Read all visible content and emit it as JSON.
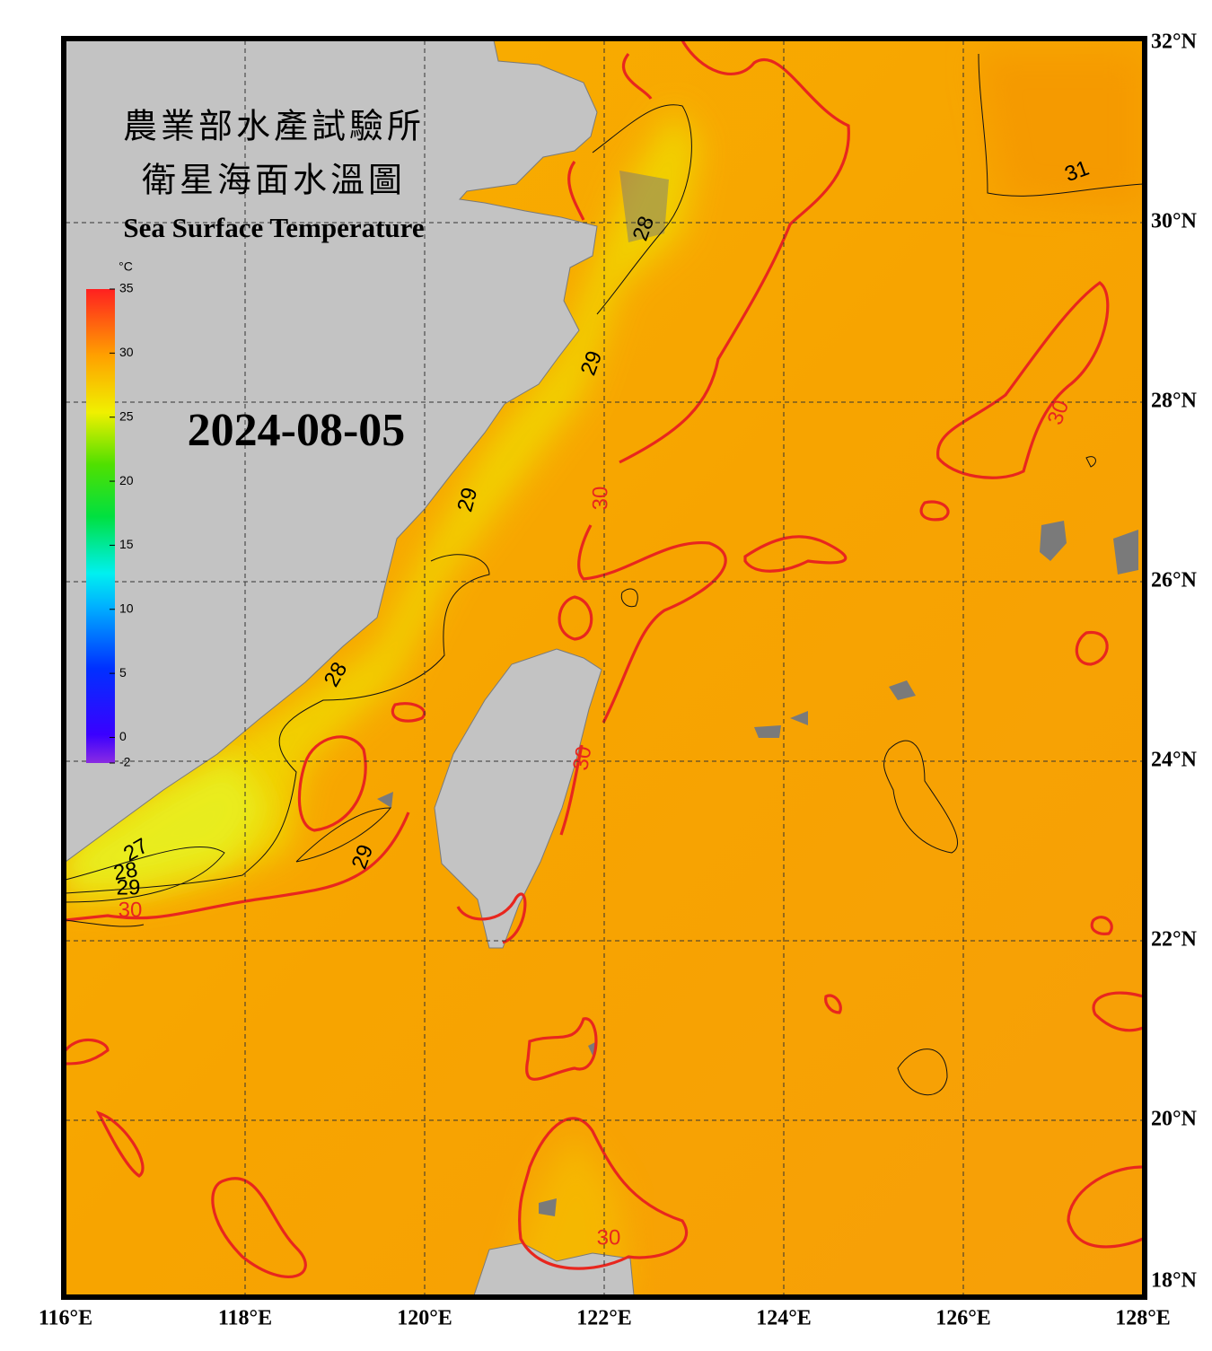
{
  "header": {
    "title_zh_1": "農業部水產試驗所",
    "title_zh_2": "衛星海面水溫圖",
    "title_en": "Sea Surface Temperature",
    "date": "2024-08-05"
  },
  "colorbar": {
    "unit": "°C",
    "range": [
      -2,
      35
    ],
    "ticks": [
      -2,
      0,
      5,
      10,
      15,
      20,
      25,
      30,
      35
    ]
  },
  "map": {
    "xlim": [
      116,
      128
    ],
    "ylim": [
      18,
      32
    ],
    "lon_ticks": [
      {
        "value": 116,
        "label": "116°E"
      },
      {
        "value": 118,
        "label": "118°E"
      },
      {
        "value": 120,
        "label": "120°E"
      },
      {
        "value": 122,
        "label": "122°E"
      },
      {
        "value": 124,
        "label": "124°E"
      },
      {
        "value": 126,
        "label": "126°E"
      },
      {
        "value": 128,
        "label": "128°E"
      }
    ],
    "lat_ticks": [
      {
        "value": 18,
        "label": "18°N"
      },
      {
        "value": 20,
        "label": "20°N"
      },
      {
        "value": 22,
        "label": "22°N"
      },
      {
        "value": 24,
        "label": "24°N"
      },
      {
        "value": 26,
        "label": "26°N"
      },
      {
        "value": 28,
        "label": "28°N"
      },
      {
        "value": 30,
        "label": "30°N"
      },
      {
        "value": 32,
        "label": "32°N"
      }
    ],
    "contour_labels": [
      "31",
      "28",
      "29",
      "29",
      "30",
      "28",
      "30",
      "30",
      "29",
      "27",
      "28",
      "29",
      "30",
      "30"
    ]
  }
}
